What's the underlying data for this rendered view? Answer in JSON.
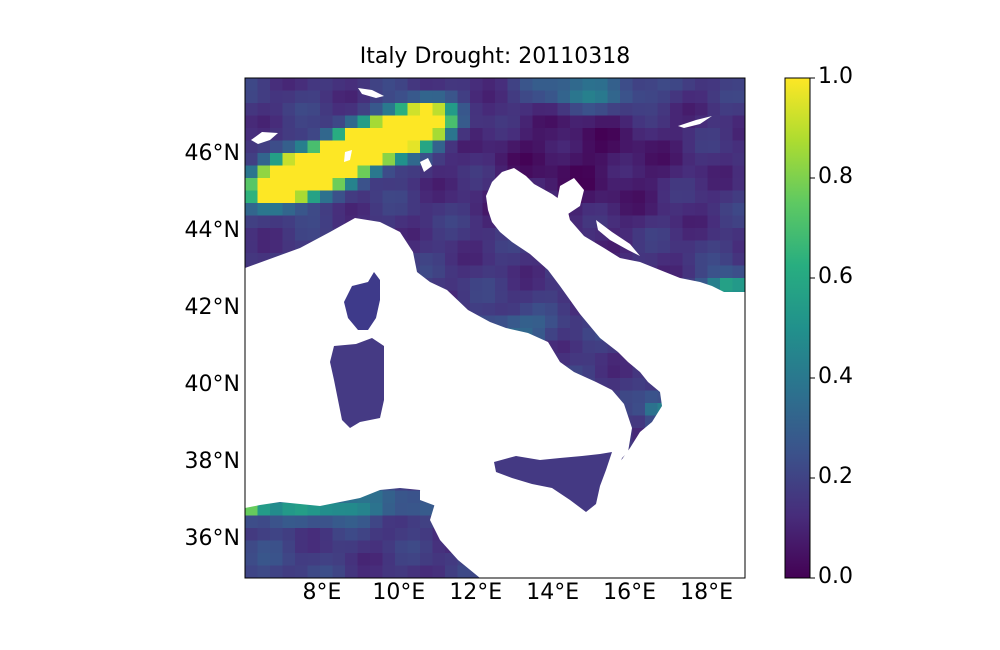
{
  "title": "Italy Drought: 20110318",
  "map": {
    "lat_range": [
      35,
      48
    ],
    "lon_range": [
      6,
      19
    ],
    "lat_ticks": [
      "46°N",
      "44°N",
      "42°N",
      "40°N",
      "38°N",
      "36°N"
    ],
    "lon_ticks": [
      "8°E",
      "10°E",
      "12°E",
      "14°E",
      "16°E",
      "18°E"
    ],
    "land_color": "#ffffff"
  },
  "colorbar": {
    "colormap": "viridis",
    "range": [
      0.0,
      1.0
    ],
    "tick_labels": [
      "1.0",
      "0.8",
      "0.6",
      "0.4",
      "0.2",
      "0.0"
    ]
  }
}
